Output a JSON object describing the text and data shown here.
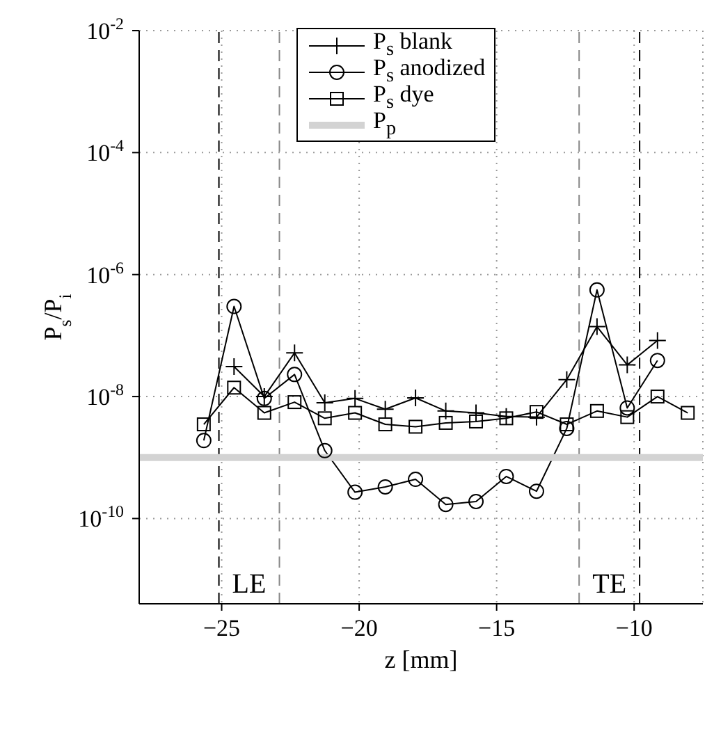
{
  "chart_data": {
    "type": "line",
    "xlabel": "z [mm]",
    "ylabel": "P$_{s}$/P$_{i}$",
    "x": [
      -25.65,
      -24.55,
      -23.45,
      -22.35,
      -21.25,
      -20.15,
      -19.05,
      -17.95,
      -16.85,
      -15.75,
      -14.65,
      -13.55,
      -12.45,
      -11.35,
      -10.25,
      -9.15,
      -8.05
    ],
    "series": [
      {
        "name": "P$_{s}$ blank",
        "color": "#000000",
        "marker": "cross",
        "values": [
          null,
          3.1e-08,
          1e-08,
          5.2e-08,
          7.9e-09,
          9.3e-09,
          6.2e-09,
          9.5e-09,
          5.8e-09,
          5.4e-09,
          4.7e-09,
          4.6e-09,
          1.9e-08,
          1.4e-07,
          3.3e-08,
          8.3e-08,
          null
        ]
      },
      {
        "name": "P$_{s}$ anodized",
        "color": "#000000",
        "marker": "circle",
        "values": [
          1.9e-09,
          3e-07,
          9.3e-09,
          2.3e-08,
          1.3e-09,
          2.7e-10,
          3.3e-10,
          4.4e-10,
          1.7e-10,
          1.9e-10,
          4.9e-10,
          2.8e-10,
          3e-09,
          5.6e-07,
          6.5e-09,
          3.9e-08,
          null
        ]
      },
      {
        "name": "P$_{s}$ dye",
        "color": "#000000",
        "marker": "square",
        "values": [
          3.5e-09,
          1.4e-08,
          5.4e-09,
          8.1e-09,
          4.4e-09,
          5.4e-09,
          3.5e-09,
          3.2e-09,
          3.7e-09,
          3.9e-09,
          4.4e-09,
          5.6e-09,
          3.5e-09,
          5.8e-09,
          4.6e-09,
          1e-08,
          5.4e-09
        ]
      },
      {
        "name": "P$_{p}$",
        "color": "#d3d3d3",
        "marker": "none",
        "x": [
          -28,
          -7.5
        ],
        "values": [
          1e-09,
          1e-09
        ]
      }
    ],
    "ref_lines": [
      {
        "axis": "x",
        "value": -25.1,
        "color": "#000000",
        "line_style": "dashed"
      },
      {
        "axis": "x",
        "value": -22.9,
        "color": "#888888",
        "line_style": "dashed"
      },
      {
        "axis": "x",
        "value": -12.0,
        "color": "#888888",
        "line_style": "dashed"
      },
      {
        "axis": "x",
        "value": -9.8,
        "color": "#000000",
        "line_style": "dashed"
      }
    ],
    "annotations": [
      "LE",
      "TE"
    ],
    "log": "y",
    "xlim": [
      -28,
      -7.5
    ],
    "xticks": [
      -25,
      -20,
      -15,
      -10
    ],
    "ylim": [
      4e-12,
      0.01
    ],
    "yticks": [
      {
        "value": 1e-10,
        "label": "10$^{-10}$"
      },
      {
        "value": 1e-08,
        "label": "10$^{-8}$"
      },
      {
        "value": 1e-06,
        "label": "10$^{-6}$"
      },
      {
        "value": 0.0001,
        "label": "10$^{-4}$"
      },
      {
        "value": 0.01,
        "label": "10$^{-2}$"
      }
    ],
    "grid": true,
    "legend": "top",
    "line_style": "solid"
  }
}
